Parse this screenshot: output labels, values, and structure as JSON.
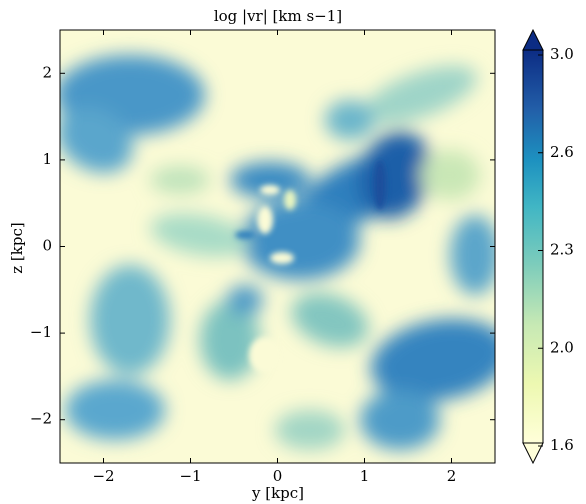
{
  "chart_data": {
    "type": "heatmap",
    "title": "log |vr|  [km s−1]",
    "xlabel": "y [kpc]",
    "ylabel": "z [kpc]",
    "xlim": [
      -2.5,
      2.5
    ],
    "ylim": [
      -2.5,
      2.5
    ],
    "xticks": [
      {
        "value": -2,
        "label": "−2"
      },
      {
        "value": -1,
        "label": "−1"
      },
      0,
      1,
      2
    ],
    "yticks": [
      {
        "value": -2,
        "label": "−2"
      },
      {
        "value": -1,
        "label": "−1"
      },
      0,
      1,
      2
    ],
    "colormap": "YlGnBu",
    "colorbar": {
      "lim": [
        1.6,
        3.0
      ],
      "extend": "both",
      "spacing": "uniform",
      "ticks": [
        1.6,
        {
          "value": 2,
          "label": "2.0"
        },
        2.3,
        2.6,
        {
          "value": 3,
          "label": "3.0"
        }
      ]
    }
  }
}
